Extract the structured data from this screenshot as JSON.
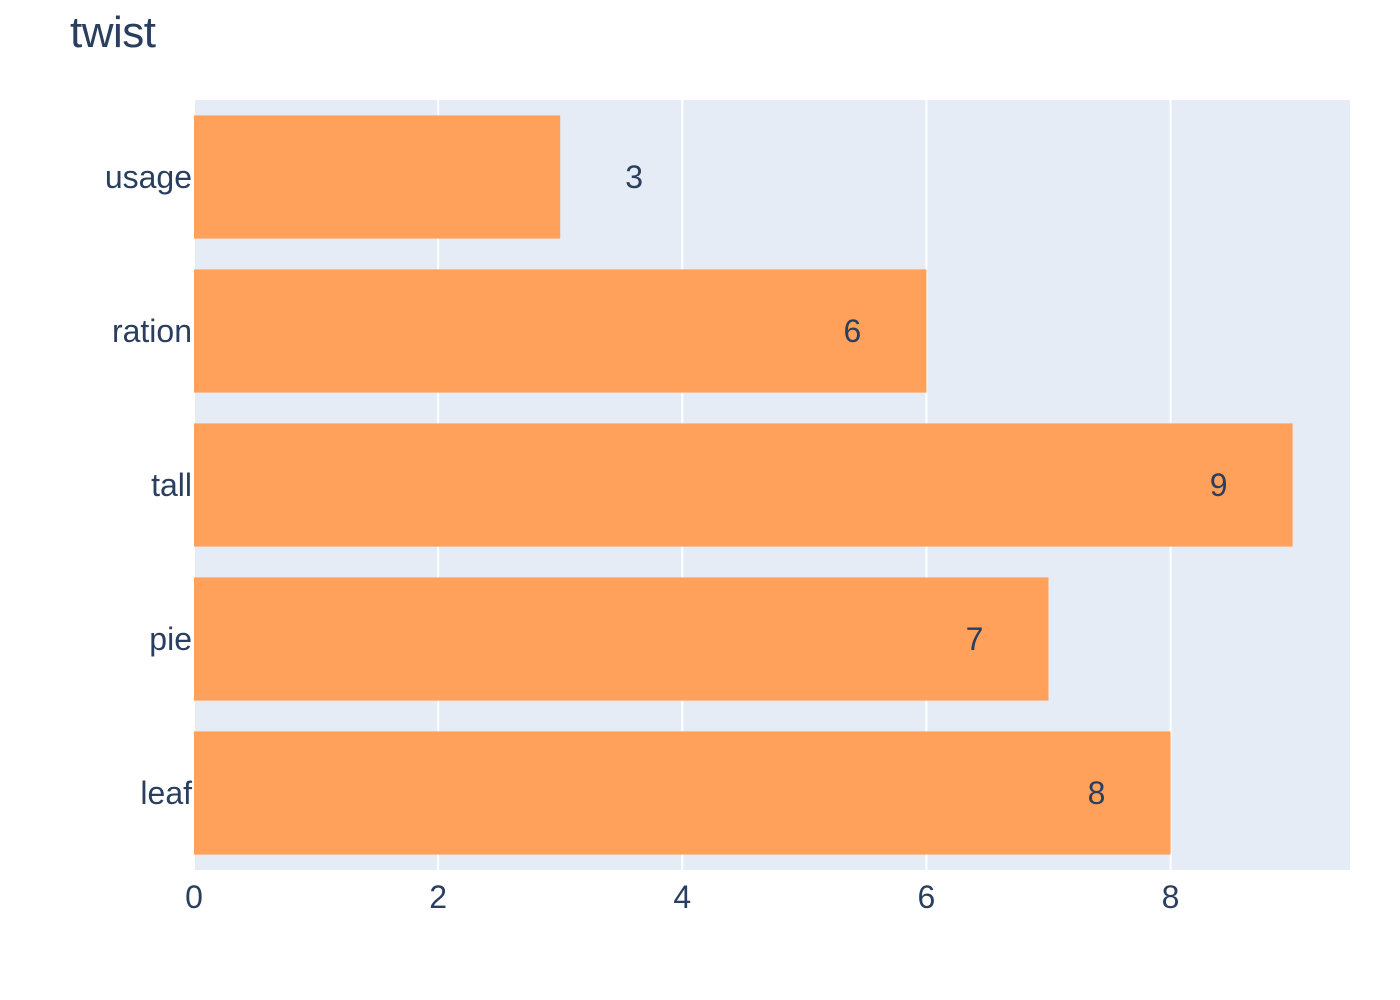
{
  "chart_data": {
    "type": "bar",
    "orientation": "horizontal",
    "title": "twist",
    "categories": [
      "usage",
      "ration",
      "tall",
      "pie",
      "leaf"
    ],
    "values": [
      3,
      6,
      9,
      7,
      8
    ],
    "xlabel": "",
    "ylabel": "",
    "xlim": [
      0,
      9.47
    ],
    "x_ticks": [
      0,
      2,
      4,
      6,
      8
    ],
    "grid": true,
    "bar_color": "#FFA15A",
    "plot_background": "#E5ECF6",
    "text_color": "#2a3f5f",
    "data_labels": true
  }
}
